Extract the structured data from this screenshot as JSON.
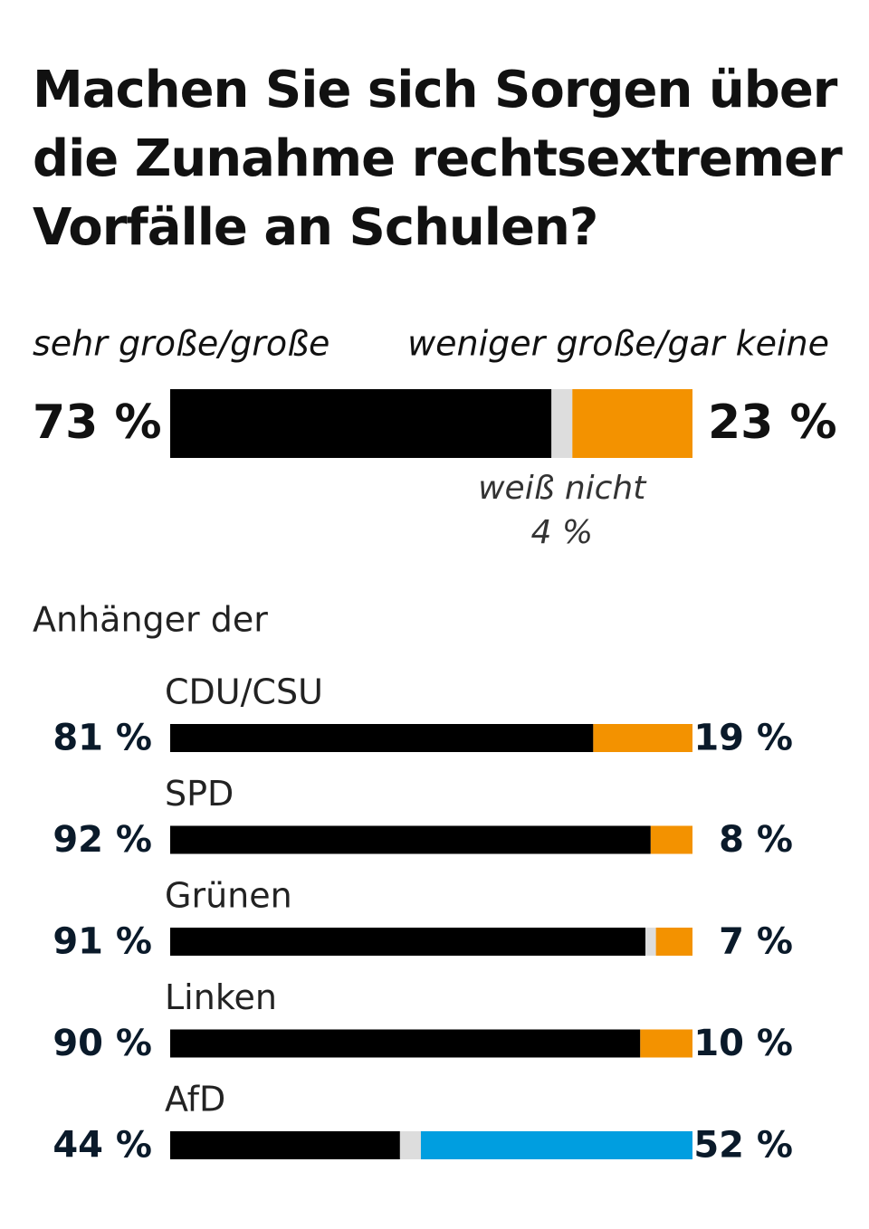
{
  "chart_data": {
    "type": "stacked-bar",
    "title": "Machen Sie sich Sorgen über die Zunahme rechtsextremer Vorfälle an Schulen?",
    "group_label": "Anhänger der",
    "categories": [
      null,
      "CDU/CSU",
      "SPD",
      "Grünen",
      "Linken",
      "AfD"
    ],
    "xlim": [
      0,
      100
    ],
    "series": [
      {
        "name": "sehr große/große",
        "color": "#000000",
        "values": [
          73,
          81,
          92,
          91,
          90,
          44
        ],
        "value_labels": [
          "73 %",
          "81 %",
          "92 %",
          "91 %",
          "90 %",
          "44 %"
        ]
      },
      {
        "name": "weiß nicht",
        "color": "#dddddd",
        "values": [
          4,
          0,
          0,
          2,
          0,
          4
        ],
        "value_labels": [
          "4 %",
          null,
          null,
          null,
          null,
          null
        ]
      },
      {
        "name": "weniger große/gar keine",
        "color": "#f39200",
        "colors": [
          "#f39200",
          "#f39200",
          "#f39200",
          "#f39200",
          "#f39200",
          "#009ee0"
        ],
        "values": [
          23,
          19,
          8,
          7,
          10,
          52
        ],
        "value_labels": [
          "23 %",
          "19 %",
          "8 %",
          "7 %",
          "10 %",
          "52 %"
        ]
      }
    ]
  }
}
